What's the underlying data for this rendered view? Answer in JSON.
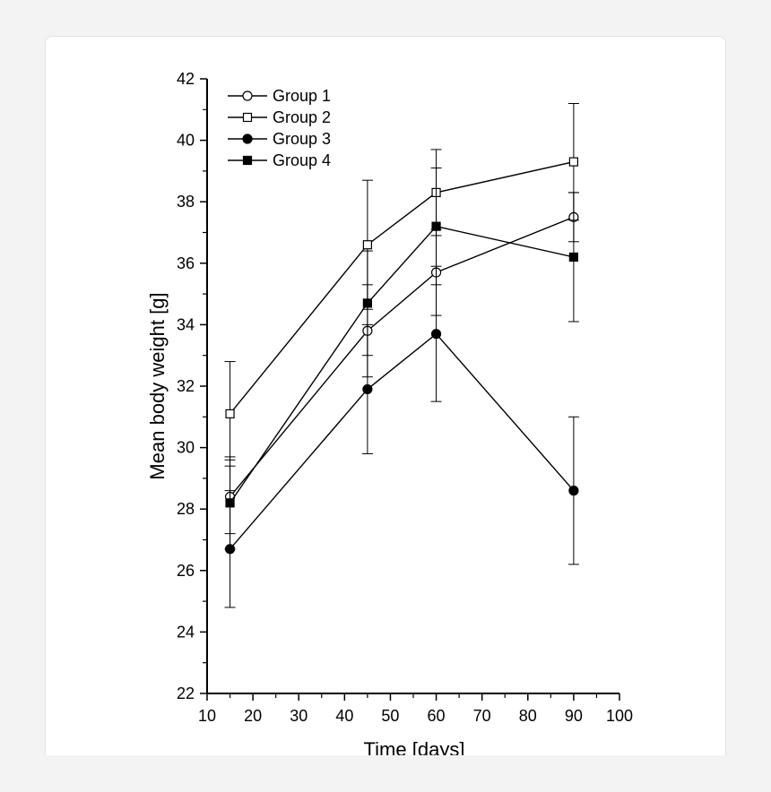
{
  "chart_data": {
    "type": "line",
    "title": "",
    "xlabel": "Time [days]",
    "ylabel": "Mean body weight [g]",
    "xlim": [
      10,
      100
    ],
    "ylim": [
      22,
      42
    ],
    "x_ticks": [
      10,
      20,
      30,
      40,
      50,
      60,
      70,
      80,
      90,
      100
    ],
    "y_ticks": [
      22,
      24,
      26,
      28,
      30,
      32,
      34,
      36,
      38,
      40,
      42
    ],
    "x": [
      15,
      45,
      60,
      90
    ],
    "grid": false,
    "legend_position": "top-left",
    "series": [
      {
        "name": "Group 1",
        "marker": "circle-open",
        "values": [
          28.4,
          33.8,
          35.7,
          37.5
        ],
        "errors": [
          1.2,
          1.5,
          1.4,
          0.8
        ]
      },
      {
        "name": "Group 2",
        "marker": "square-open",
        "values": [
          31.1,
          36.6,
          38.3,
          39.3
        ],
        "errors": [
          1.7,
          2.1,
          1.4,
          1.9
        ]
      },
      {
        "name": "Group 3",
        "marker": "circle-filled",
        "values": [
          26.7,
          31.9,
          33.7,
          28.6
        ],
        "errors": [
          1.9,
          2.1,
          2.2,
          2.4
        ]
      },
      {
        "name": "Group 4",
        "marker": "square-filled",
        "values": [
          28.2,
          34.7,
          37.2,
          36.2
        ],
        "errors": [
          1.5,
          1.7,
          1.9,
          2.1
        ]
      }
    ]
  }
}
